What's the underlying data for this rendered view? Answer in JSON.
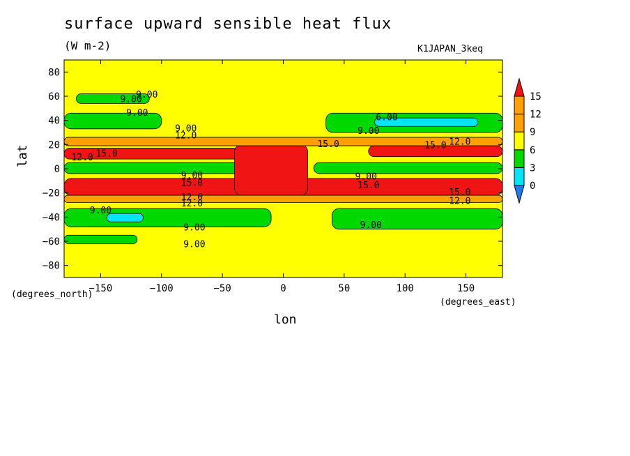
{
  "chart_data": {
    "type": "heatmap",
    "title": "surface upward sensible heat flux",
    "units": "(W m-2)",
    "experiment": "K1JAPAN_3keq",
    "xlabel": "lon",
    "ylabel": "lat",
    "x_units_label": "(degrees_east)",
    "y_units_label": "(degrees_north)",
    "xlim": [
      -180,
      180
    ],
    "ylim": [
      -90,
      90
    ],
    "x_ticks": [
      -150,
      -100,
      -50,
      0,
      50,
      100,
      150
    ],
    "y_ticks": [
      80,
      60,
      40,
      20,
      0,
      -20,
      -40,
      -60,
      -80
    ],
    "colorbar": {
      "levels": [
        0,
        3,
        6,
        9,
        12,
        15
      ],
      "labels": [
        "0",
        "3",
        "6",
        "9",
        "12",
        "15"
      ],
      "colors": [
        "#1e7cf0",
        "#00e5f5",
        "#00d800",
        "#ffff00",
        "#ffa000",
        "#f01414"
      ]
    },
    "fill_colors": {
      "below_0": "#1e7cf0",
      "c0_3": "#1e7cf0",
      "c3_6": "#00e5f5",
      "c6_9": "#00d800",
      "c9_12": "#ffff00",
      "c12_15": "#ffa000",
      "above_15": "#f01414"
    },
    "zonal_regions": [
      {
        "lon": [
          -180,
          -25
        ],
        "lat": [
          -4,
          5
        ],
        "value": 7.5
      },
      {
        "lon": [
          25,
          180
        ],
        "lat": [
          -4,
          5
        ],
        "value": 7.5
      },
      {
        "lon": [
          -180,
          -30
        ],
        "lat": [
          8,
          17
        ],
        "value": 16
      },
      {
        "lon": [
          -180,
          180
        ],
        "lat": [
          -22,
          -8
        ],
        "value": 16
      },
      {
        "lon": [
          -40,
          20
        ],
        "lat": [
          -22,
          20
        ],
        "value": 16
      },
      {
        "lon": [
          70,
          180
        ],
        "lat": [
          10,
          19
        ],
        "value": 16
      },
      {
        "lon": [
          -180,
          180
        ],
        "lat": [
          19,
          26
        ],
        "value": 13
      },
      {
        "lon": [
          -180,
          180
        ],
        "lat": [
          -28,
          -22
        ],
        "value": 13
      },
      {
        "lon": [
          -180,
          -100
        ],
        "lat": [
          33,
          46
        ],
        "value": 7.5
      },
      {
        "lon": [
          35,
          180
        ],
        "lat": [
          30,
          46
        ],
        "value": 7.5
      },
      {
        "lon": [
          75,
          160
        ],
        "lat": [
          35,
          42
        ],
        "value": 4.5
      },
      {
        "lon": [
          -180,
          -10
        ],
        "lat": [
          -48,
          -33
        ],
        "value": 7.5
      },
      {
        "lon": [
          40,
          180
        ],
        "lat": [
          -50,
          -33
        ],
        "value": 7.5
      },
      {
        "lon": [
          -145,
          -115
        ],
        "lat": [
          -44,
          -37
        ],
        "value": 4.5
      },
      {
        "lon": [
          -170,
          -110
        ],
        "lat": [
          54,
          62
        ],
        "value": 7.5
      },
      {
        "lon": [
          -180,
          -120
        ],
        "lat": [
          -62,
          -55
        ],
        "value": 7.5
      }
    ],
    "contour_labels": [
      {
        "text": "9.00",
        "lon": -112,
        "lat": 61
      },
      {
        "text": "9.00",
        "lon": -125,
        "lat": 57
      },
      {
        "text": "9.00",
        "lon": -120,
        "lat": 46
      },
      {
        "text": "9.00",
        "lon": -80,
        "lat": 33
      },
      {
        "text": "12.0",
        "lon": -80,
        "lat": 27
      },
      {
        "text": "15.0",
        "lon": -145,
        "lat": 12
      },
      {
        "text": "12.0",
        "lon": -165,
        "lat": 9
      },
      {
        "text": "15.0",
        "lon": 37,
        "lat": 20
      },
      {
        "text": "6.00",
        "lon": 85,
        "lat": 42
      },
      {
        "text": "9.00",
        "lon": 70,
        "lat": 31
      },
      {
        "text": "15.0",
        "lon": 125,
        "lat": 19
      },
      {
        "text": "12.0",
        "lon": 145,
        "lat": 22
      },
      {
        "text": "9.00",
        "lon": -75,
        "lat": -6
      },
      {
        "text": "15.0",
        "lon": -75,
        "lat": -12
      },
      {
        "text": "9.00",
        "lon": 68,
        "lat": -7
      },
      {
        "text": "15.0",
        "lon": 70,
        "lat": -14
      },
      {
        "text": "12.0",
        "lon": -75,
        "lat": -24
      },
      {
        "text": "12.0",
        "lon": -75,
        "lat": -29
      },
      {
        "text": "15.0",
        "lon": 145,
        "lat": -20
      },
      {
        "text": "12.0",
        "lon": 145,
        "lat": -27
      },
      {
        "text": "9.00",
        "lon": -150,
        "lat": -35
      },
      {
        "text": "9.00",
        "lon": 72,
        "lat": -47
      },
      {
        "text": "9.00",
        "lon": -73,
        "lat": -49
      },
      {
        "text": "9.00",
        "lon": -73,
        "lat": -63
      }
    ]
  }
}
